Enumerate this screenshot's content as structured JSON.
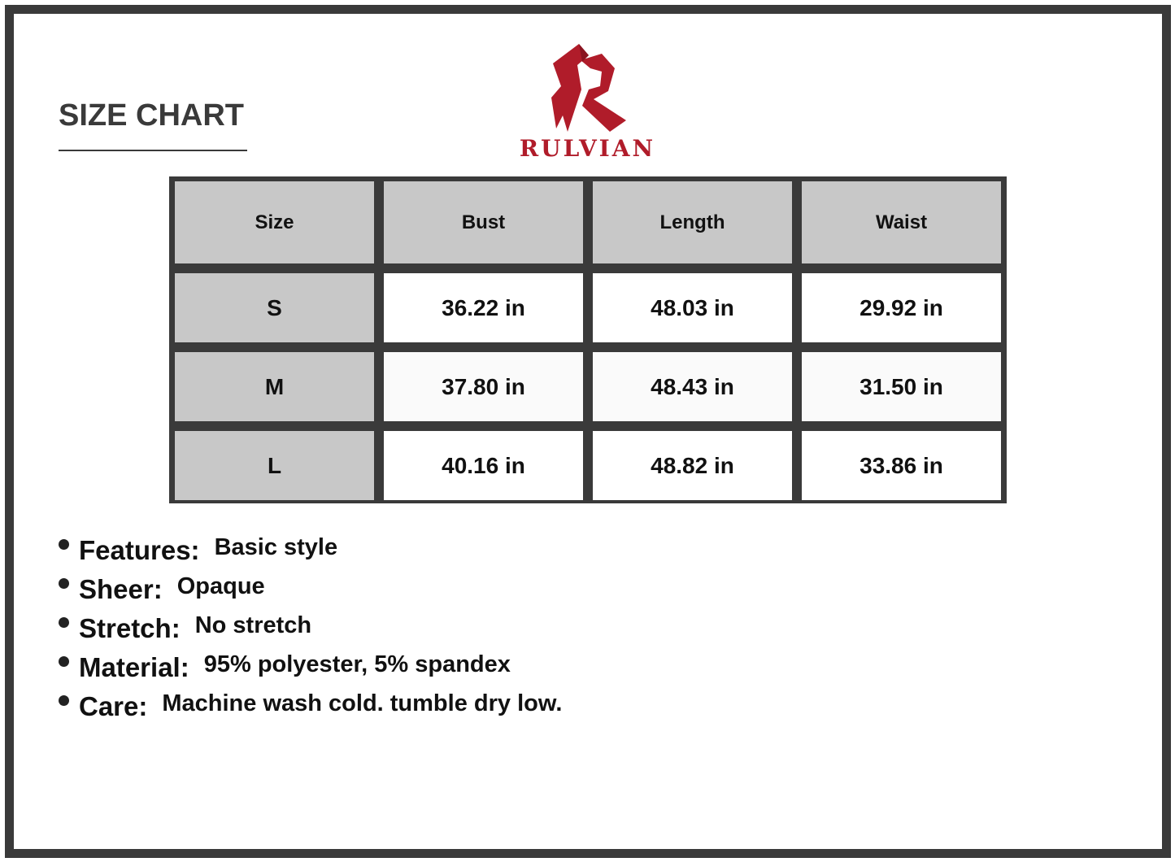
{
  "title": "SIZE CHART",
  "brand": {
    "name": "RULVIAN",
    "color": "#b01c2a"
  },
  "table": {
    "headers": [
      "Size",
      "Bust",
      "Length",
      "Waist"
    ],
    "rows": [
      [
        "S",
        "36.22 in",
        "48.03 in",
        "29.92 in"
      ],
      [
        "M",
        "37.80 in",
        "48.43 in",
        "31.50 in"
      ],
      [
        "L",
        "40.16 in",
        "48.82 in",
        "33.86 in"
      ]
    ]
  },
  "specs": [
    {
      "label": "Features:",
      "value": "Basic style"
    },
    {
      "label": "Sheer:",
      "value": "Opaque"
    },
    {
      "label": "Stretch:",
      "value": "No stretch"
    },
    {
      "label": "Material:",
      "value": "95% polyester, 5% spandex"
    },
    {
      "label": "Care:",
      "value": "Machine wash cold. tumble dry low."
    }
  ]
}
